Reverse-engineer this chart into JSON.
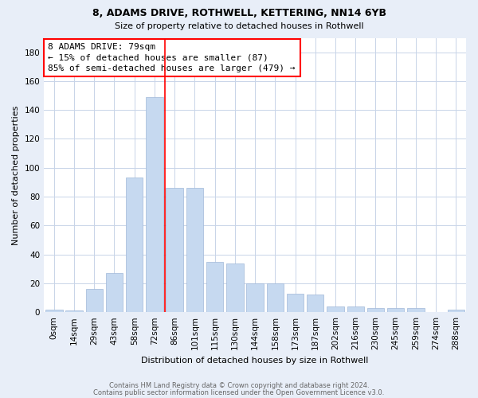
{
  "title1": "8, ADAMS DRIVE, ROTHWELL, KETTERING, NN14 6YB",
  "title2": "Size of property relative to detached houses in Rothwell",
  "xlabel": "Distribution of detached houses by size in Rothwell",
  "ylabel": "Number of detached properties",
  "categories": [
    "0sqm",
    "14sqm",
    "29sqm",
    "43sqm",
    "58sqm",
    "72sqm",
    "86sqm",
    "101sqm",
    "115sqm",
    "130sqm",
    "144sqm",
    "158sqm",
    "173sqm",
    "187sqm",
    "202sqm",
    "216sqm",
    "230sqm",
    "245sqm",
    "259sqm",
    "274sqm",
    "288sqm"
  ],
  "values": [
    2,
    1,
    16,
    27,
    93,
    149,
    86,
    86,
    35,
    34,
    20,
    20,
    13,
    12,
    4,
    4,
    3,
    3,
    3,
    0,
    2
  ],
  "bar_color": "#c6d9f0",
  "bar_edgecolor": "#a0b8d8",
  "annotation_text": "8 ADAMS DRIVE: 79sqm\n← 15% of detached houses are smaller (87)\n85% of semi-detached houses are larger (479) →",
  "annotation_box_facecolor": "white",
  "annotation_box_edgecolor": "red",
  "vline_color": "red",
  "vline_index": 6,
  "ylim": [
    0,
    190
  ],
  "yticks": [
    0,
    20,
    40,
    60,
    80,
    100,
    120,
    140,
    160,
    180
  ],
  "footer1": "Contains HM Land Registry data © Crown copyright and database right 2024.",
  "footer2": "Contains public sector information licensed under the Open Government Licence v3.0.",
  "bg_color": "#e8eef8",
  "plot_bg_color": "#ffffff",
  "grid_color": "#c8d4e8",
  "title1_fontsize": 9,
  "title2_fontsize": 8,
  "ylabel_fontsize": 8,
  "xlabel_fontsize": 8,
  "tick_fontsize": 7.5,
  "footer_fontsize": 6,
  "annotation_fontsize": 8
}
